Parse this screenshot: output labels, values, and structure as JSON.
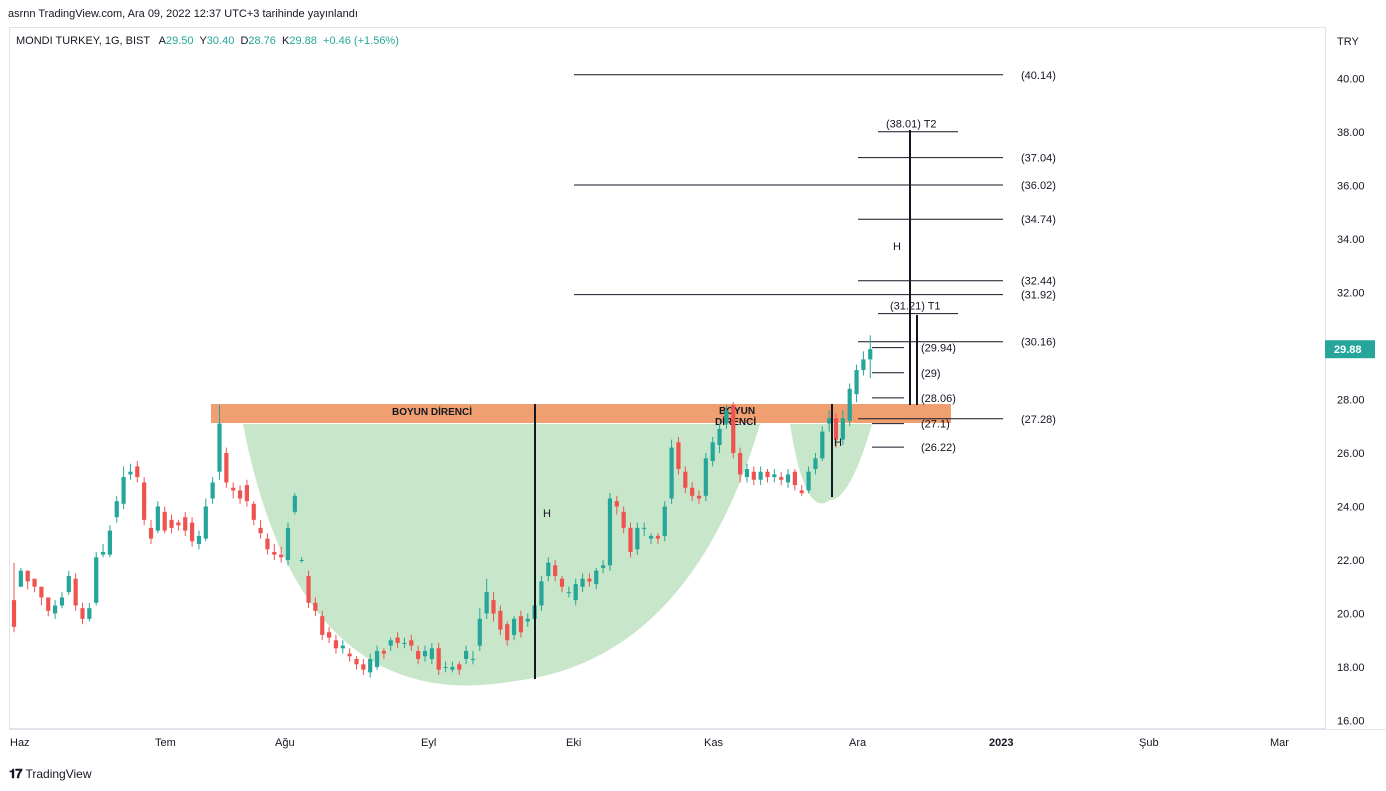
{
  "published": "asrnn TradingView.com, Ara 09, 2022 12:37 UTC+3 tarihinde yayınlandı",
  "legend": {
    "symbol": "MONDI TURKEY, 1G, BIST",
    "o_label": "A",
    "o": "29.50",
    "h_label": "Y",
    "h": "30.40",
    "l_label": "D",
    "l": "28.76",
    "c_label": "K",
    "c": "29.88",
    "change": "+0.46 (+1.56%)"
  },
  "currency": "TRY",
  "last_price": "29.88",
  "brand": "TradingView",
  "colors": {
    "up": "#26a69a",
    "down": "#ef5350",
    "cup_fill": "#c8e6c9",
    "neck_band": "#f0a070",
    "last_price_bg": "#26a69a"
  },
  "chart_data": {
    "type": "candlestick",
    "y_ticks": [
      "16.00",
      "18.00",
      "20.00",
      "22.00",
      "24.00",
      "26.00",
      "28.00",
      "30.00",
      "32.00",
      "34.00",
      "36.00",
      "38.00",
      "40.00"
    ],
    "y_range": [
      15.5,
      41.5
    ],
    "x_ticks": [
      "Haz",
      "Tem",
      "Ağu",
      "Eyl",
      "Eki",
      "Kas",
      "Ara",
      "2023",
      "Şub",
      "Mar"
    ],
    "annotations": {
      "neckline_label": "BOYUN DİRENCİ",
      "neckline_label2": "BOYUN",
      "neckline_label3": "DİRENCİ",
      "height_label": "H",
      "levels": [
        {
          "value": 40.14,
          "label": "(40.14)"
        },
        {
          "value": 37.04,
          "label": "(37.04)"
        },
        {
          "value": 36.02,
          "label": "(36.02)"
        },
        {
          "value": 34.74,
          "label": "(34.74)"
        },
        {
          "value": 32.44,
          "label": "(32.44)"
        },
        {
          "value": 31.92,
          "label": "(31.92)"
        },
        {
          "value": 30.16,
          "label": "(30.16)"
        },
        {
          "value": 27.28,
          "label": "(27.28)"
        }
      ],
      "short_levels": [
        {
          "value": 29.94,
          "label": "(29.94)"
        },
        {
          "value": 29.0,
          "label": "(29)"
        },
        {
          "value": 28.06,
          "label": "(28.06)"
        },
        {
          "value": 27.1,
          "label": "(27.1)"
        },
        {
          "value": 26.22,
          "label": "(26.22)"
        }
      ],
      "targets": [
        {
          "value": 38.01,
          "label": "(38.01) T2"
        },
        {
          "value": 31.21,
          "label": "(31.21) T1"
        }
      ]
    },
    "candles": [
      [
        20.5,
        19.5
      ],
      [
        21.0,
        21.6
      ],
      [
        21.6,
        21.2
      ],
      [
        21.3,
        21.0
      ],
      [
        21.0,
        20.6
      ],
      [
        20.6,
        20.1
      ],
      [
        20.0,
        20.3
      ],
      [
        20.3,
        20.6
      ],
      [
        20.8,
        21.4
      ],
      [
        21.3,
        20.3
      ],
      [
        20.2,
        19.8
      ],
      [
        19.8,
        20.2
      ],
      [
        20.4,
        22.1
      ],
      [
        22.2,
        22.3
      ],
      [
        22.2,
        23.1
      ],
      [
        23.6,
        24.2
      ],
      [
        24.1,
        25.1
      ],
      [
        25.2,
        25.3
      ],
      [
        25.5,
        25.1
      ],
      [
        24.9,
        23.5
      ],
      [
        23.2,
        22.8
      ],
      [
        23.1,
        24.0
      ],
      [
        23.8,
        23.1
      ],
      [
        23.5,
        23.2
      ],
      [
        23.4,
        23.3
      ],
      [
        23.6,
        23.1
      ],
      [
        23.4,
        22.7
      ],
      [
        22.6,
        22.9
      ],
      [
        22.8,
        24.0
      ],
      [
        24.3,
        24.9
      ],
      [
        25.3,
        27.1
      ],
      [
        26.0,
        24.9
      ],
      [
        24.7,
        24.6
      ],
      [
        24.6,
        24.3
      ],
      [
        24.8,
        24.2
      ],
      [
        24.1,
        23.5
      ],
      [
        23.2,
        23.0
      ],
      [
        22.8,
        22.4
      ],
      [
        22.3,
        22.2
      ],
      [
        22.2,
        22.1
      ],
      [
        22.0,
        23.2
      ],
      [
        23.8,
        24.4
      ],
      [
        22.0,
        22.0
      ],
      [
        21.4,
        20.4
      ],
      [
        20.4,
        20.1
      ],
      [
        19.9,
        19.2
      ],
      [
        19.3,
        19.1
      ],
      [
        19.0,
        18.7
      ],
      [
        18.7,
        18.8
      ],
      [
        18.5,
        18.4
      ],
      [
        18.3,
        18.1
      ],
      [
        18.1,
        17.9
      ],
      [
        17.8,
        18.3
      ],
      [
        18.0,
        18.6
      ],
      [
        18.6,
        18.5
      ],
      [
        18.8,
        19.0
      ],
      [
        19.1,
        18.9
      ],
      [
        18.9,
        18.9
      ],
      [
        19.0,
        18.8
      ],
      [
        18.6,
        18.3
      ],
      [
        18.4,
        18.6
      ],
      [
        18.3,
        18.7
      ],
      [
        18.7,
        17.9
      ],
      [
        18.0,
        18.0
      ],
      [
        17.9,
        18.0
      ],
      [
        18.1,
        17.9
      ],
      [
        18.3,
        18.6
      ],
      [
        18.3,
        18.3
      ],
      [
        18.8,
        19.8
      ],
      [
        20.0,
        20.8
      ],
      [
        20.5,
        20.0
      ],
      [
        20.1,
        19.4
      ],
      [
        19.6,
        19.0
      ],
      [
        19.2,
        19.8
      ],
      [
        19.9,
        19.3
      ],
      [
        19.7,
        19.8
      ],
      [
        19.8,
        20.3
      ],
      [
        20.3,
        21.2
      ],
      [
        21.4,
        21.9
      ],
      [
        21.8,
        21.4
      ],
      [
        21.3,
        21.0
      ],
      [
        20.8,
        20.8
      ],
      [
        20.5,
        21.1
      ],
      [
        21.0,
        21.3
      ],
      [
        21.3,
        21.2
      ],
      [
        21.1,
        21.6
      ],
      [
        21.7,
        21.8
      ],
      [
        21.8,
        24.3
      ],
      [
        24.2,
        24.0
      ],
      [
        23.8,
        23.2
      ],
      [
        23.2,
        22.3
      ],
      [
        22.4,
        23.2
      ],
      [
        23.2,
        23.2
      ],
      [
        22.8,
        22.9
      ],
      [
        22.9,
        22.8
      ],
      [
        22.9,
        24.0
      ],
      [
        24.3,
        26.2
      ],
      [
        26.4,
        25.4
      ],
      [
        25.3,
        24.7
      ],
      [
        24.7,
        24.4
      ],
      [
        24.4,
        24.3
      ],
      [
        24.4,
        25.8
      ],
      [
        25.7,
        26.4
      ],
      [
        26.3,
        26.9
      ],
      [
        27.1,
        27.6
      ],
      [
        27.8,
        26.0
      ],
      [
        26.0,
        25.2
      ],
      [
        25.1,
        25.4
      ],
      [
        25.3,
        25.0
      ],
      [
        25.0,
        25.3
      ],
      [
        25.3,
        25.1
      ],
      [
        25.1,
        25.2
      ],
      [
        25.1,
        25.0
      ],
      [
        24.9,
        25.2
      ],
      [
        25.3,
        24.8
      ],
      [
        24.6,
        24.5
      ],
      [
        24.6,
        25.3
      ],
      [
        25.4,
        25.8
      ],
      [
        25.8,
        26.8
      ],
      [
        27.1,
        27.3
      ],
      [
        27.3,
        26.5
      ],
      [
        26.5,
        27.3
      ],
      [
        27.2,
        28.4
      ],
      [
        28.2,
        29.1
      ],
      [
        29.1,
        29.5
      ],
      [
        29.5,
        29.88
      ]
    ]
  }
}
